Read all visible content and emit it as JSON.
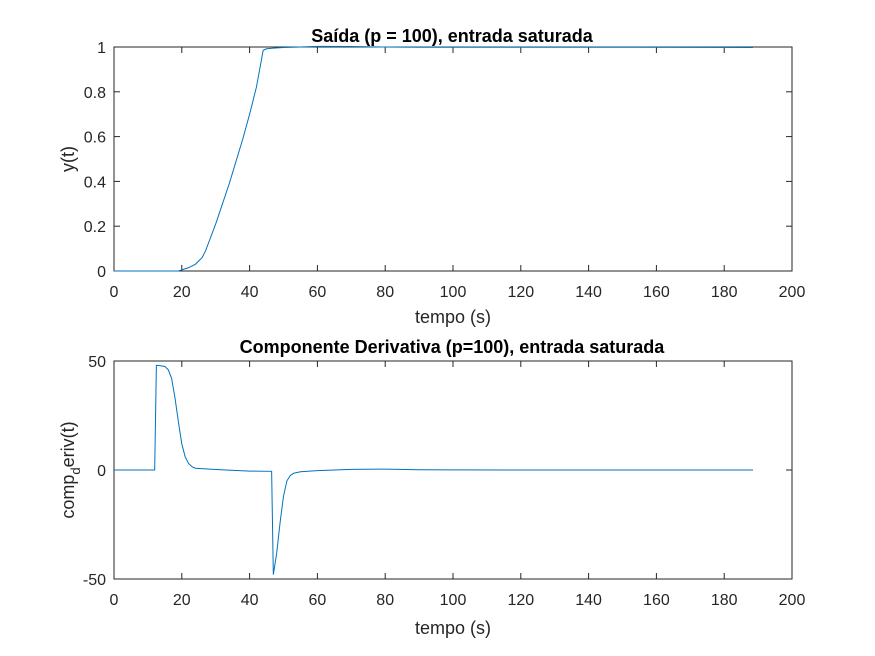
{
  "chart_data": [
    {
      "type": "line",
      "title": "Saída (p = 100), entrada saturada",
      "xlabel": "tempo (s)",
      "ylabel": "y(t)",
      "xlim": [
        0,
        200
      ],
      "ylim": [
        0,
        1
      ],
      "xticks": [
        0,
        20,
        40,
        60,
        80,
        100,
        120,
        140,
        160,
        180,
        200
      ],
      "yticks": [
        0,
        0.2,
        0.4,
        0.6,
        0.8,
        1
      ],
      "xtick_labels": [
        "0",
        "20",
        "40",
        "60",
        "80",
        "100",
        "120",
        "140",
        "160",
        "180",
        "200"
      ],
      "ytick_labels": [
        "0",
        "0.2",
        "0.4",
        "0.6",
        "0.8",
        "1"
      ],
      "grid": false,
      "color": "#0072BD",
      "series": [
        {
          "x": [
            0,
            10,
            19,
            20,
            22,
            24,
            26,
            27,
            28,
            30,
            32,
            34,
            36,
            38,
            40,
            42,
            44,
            45,
            47,
            50,
            55,
            60,
            70,
            80,
            90,
            100,
            120,
            150,
            188.5
          ],
          "y": [
            0,
            0,
            0.0,
            0.005,
            0.015,
            0.03,
            0.06,
            0.09,
            0.13,
            0.21,
            0.3,
            0.39,
            0.49,
            0.59,
            0.7,
            0.82,
            0.985,
            0.992,
            0.995,
            0.998,
            1.0,
            1.003,
            1.002,
            1.0,
            0.999,
            0.999,
            0.999,
            0.999,
            0.998
          ]
        }
      ]
    },
    {
      "type": "line",
      "title": "Componente Derivativa (p=100), entrada saturada",
      "xlabel": "tempo (s)",
      "ylabel_main": "comp",
      "ylabel_sub": "d",
      "ylabel_rest": "eriv(t)",
      "xlim": [
        0,
        200
      ],
      "ylim": [
        -50,
        50
      ],
      "xticks": [
        0,
        20,
        40,
        60,
        80,
        100,
        120,
        140,
        160,
        180,
        200
      ],
      "yticks": [
        -50,
        0,
        50
      ],
      "xtick_labels": [
        "0",
        "20",
        "40",
        "60",
        "80",
        "100",
        "120",
        "140",
        "160",
        "180",
        "200"
      ],
      "ytick_labels": [
        "-50",
        "0",
        "50"
      ],
      "grid": false,
      "color": "#0072BD",
      "series": [
        {
          "x": [
            0,
            12,
            12.5,
            13,
            15,
            16,
            17,
            18,
            19,
            20,
            21,
            22,
            23,
            24,
            30,
            40,
            46.5,
            47,
            48,
            49,
            50,
            51,
            52,
            53,
            55,
            60,
            70,
            80,
            90,
            100,
            120,
            150,
            188.5
          ],
          "y": [
            0,
            0,
            48,
            48,
            47.5,
            46,
            42,
            33,
            22,
            12,
            6,
            3,
            1.5,
            0.8,
            0.2,
            -0.5,
            -0.6,
            -48,
            -38,
            -24,
            -12,
            -5,
            -2.5,
            -1.5,
            -0.8,
            -0.3,
            0.3,
            0.4,
            0.1,
            0.05,
            0.02,
            0,
            0
          ]
        }
      ]
    }
  ]
}
